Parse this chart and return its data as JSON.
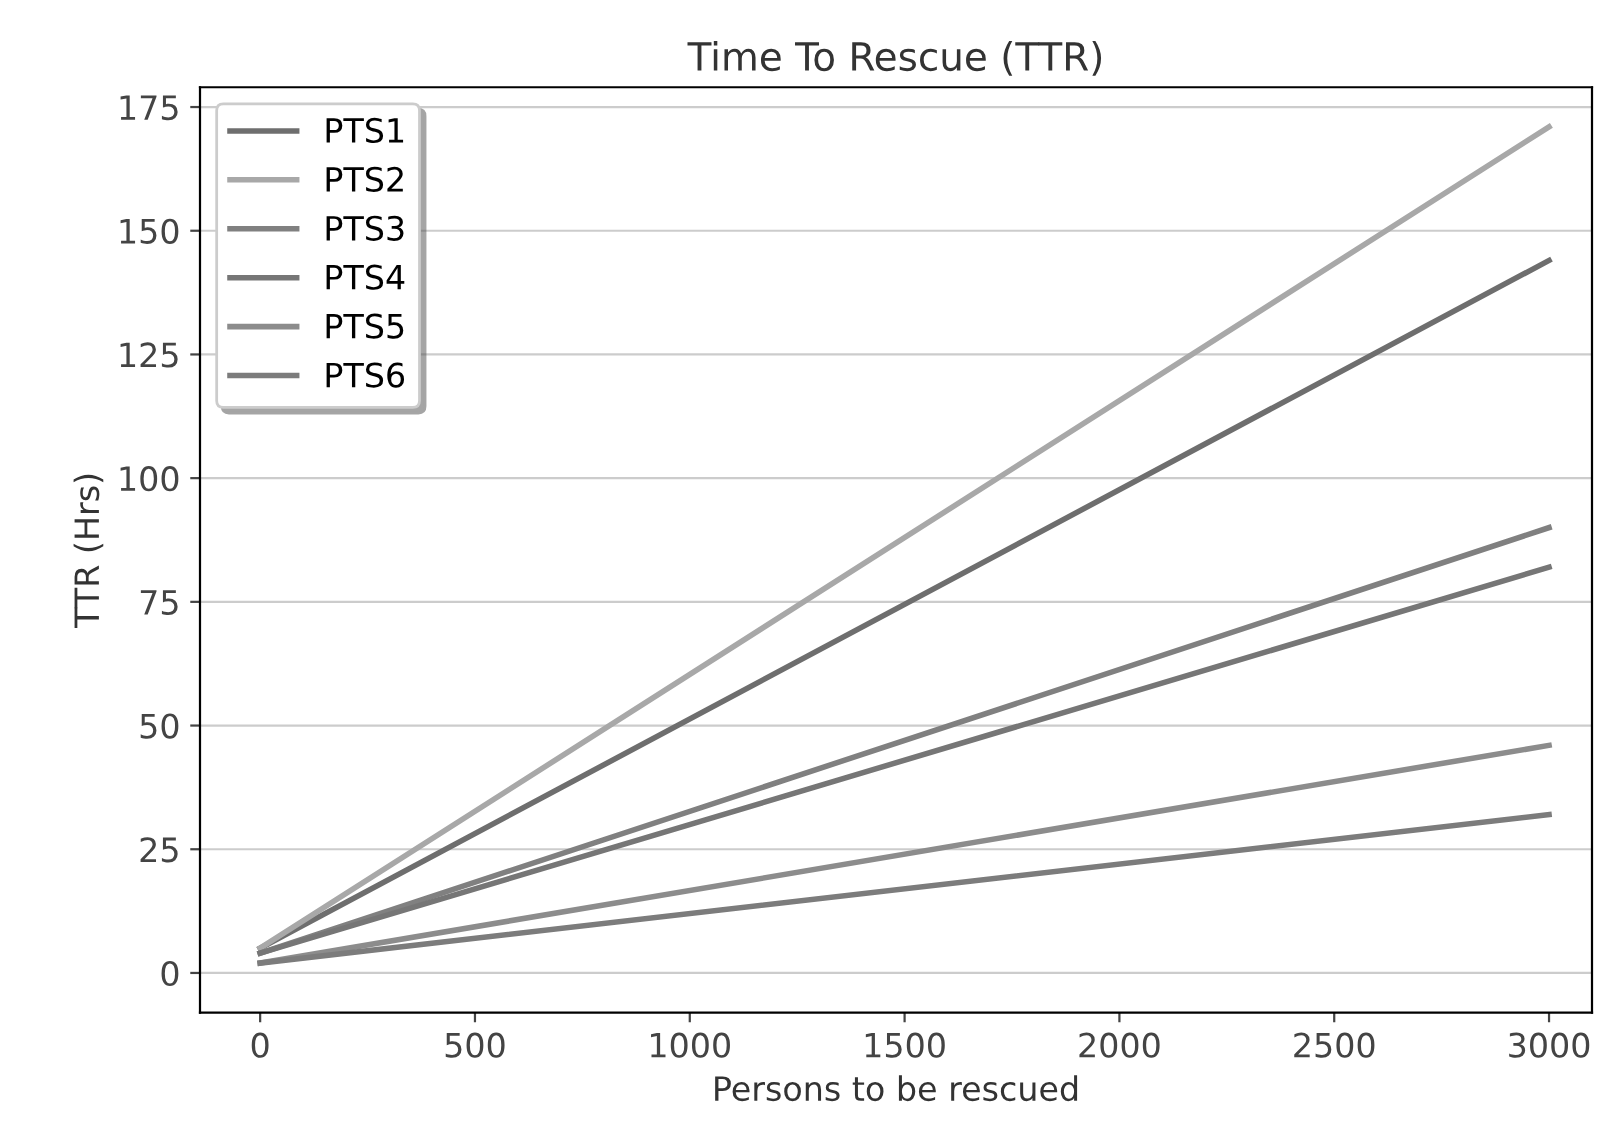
{
  "chart_data": {
    "type": "line",
    "title": "Time To Rescue (TTR)",
    "xlabel": "Persons to be rescued",
    "ylabel": "TTR (Hrs)",
    "x": [
      0,
      3000
    ],
    "series": [
      {
        "name": "PTS1",
        "color": "#6e6e6e",
        "values": [
          5,
          144
        ]
      },
      {
        "name": "PTS2",
        "color": "#a8a8a8",
        "values": [
          5,
          171
        ]
      },
      {
        "name": "PTS3",
        "color": "#808080",
        "values": [
          4,
          90
        ]
      },
      {
        "name": "PTS4",
        "color": "#767676",
        "values": [
          4,
          82
        ]
      },
      {
        "name": "PTS5",
        "color": "#8c8c8c",
        "values": [
          2,
          46
        ]
      },
      {
        "name": "PTS6",
        "color": "#7c7c7c",
        "values": [
          2,
          32
        ]
      }
    ],
    "xlim": [
      -140,
      3100
    ],
    "ylim": [
      -8,
      179
    ],
    "xticks": [
      0,
      500,
      1000,
      1500,
      2000,
      2500,
      3000
    ],
    "yticks": [
      0,
      25,
      50,
      75,
      100,
      125,
      150,
      175
    ],
    "grid": "y",
    "legend": "top left",
    "line_style": "solid",
    "marker": "none"
  }
}
